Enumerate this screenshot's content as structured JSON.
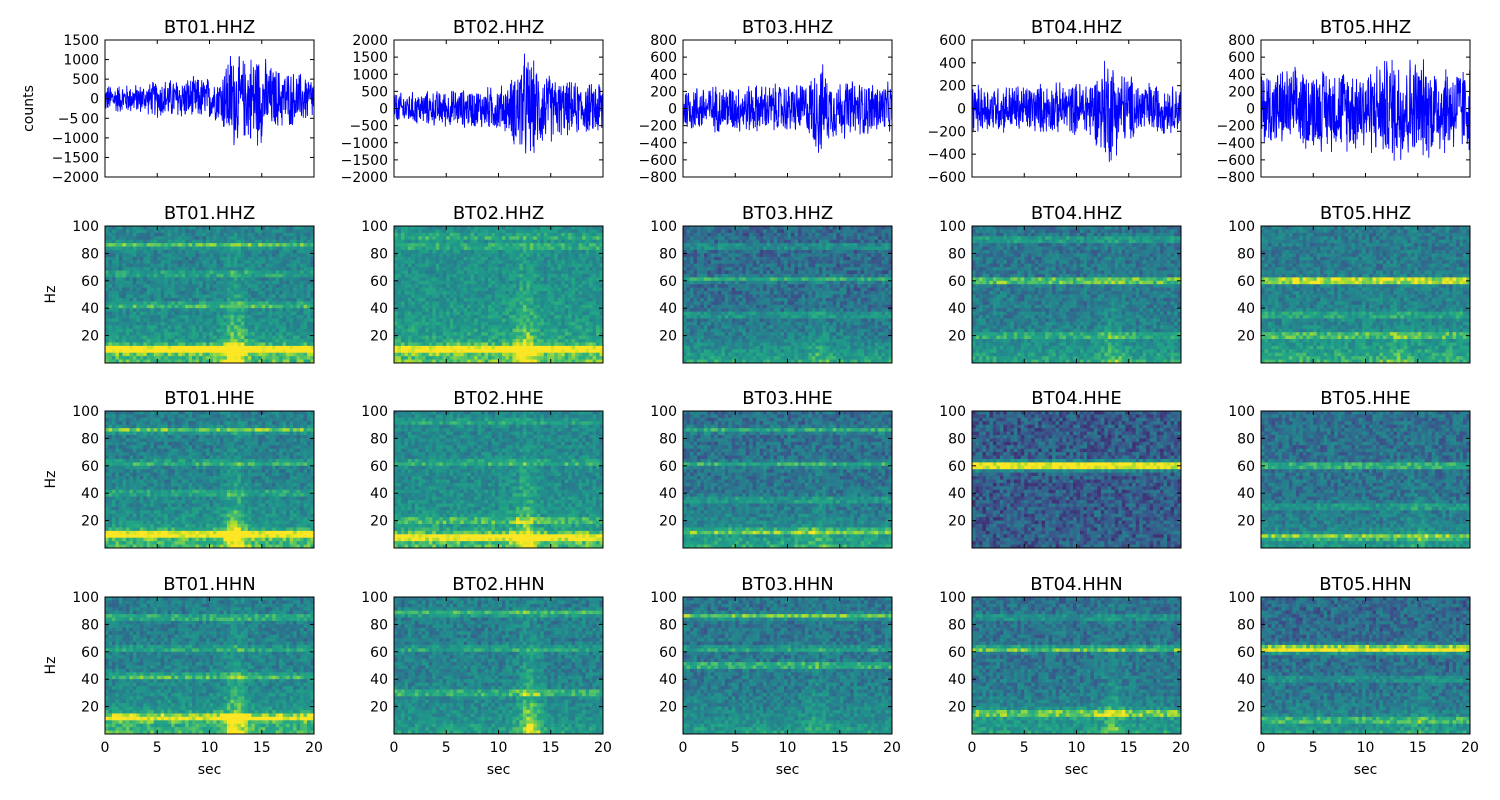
{
  "x_axis": {
    "label": "sec",
    "ticks": [
      "0",
      "5",
      "10",
      "15",
      "20"
    ],
    "xlim": [
      0,
      20
    ]
  },
  "y_labels": {
    "waveform": "counts",
    "spectrogram": "Hz"
  },
  "spectrogram_axis": {
    "ylim": [
      0,
      100
    ],
    "ticks": [
      "20",
      "40",
      "60",
      "80",
      "100"
    ]
  },
  "colors": {
    "waveform_line": "#0000ff",
    "colormap_low": "#2a788e",
    "colormap_mid": "#22a884",
    "colormap_high": "#fde725"
  },
  "chart_data": [
    {
      "type": "line",
      "title": "BT01.HHZ",
      "ylabel": "counts",
      "ylim": [
        -2000,
        1500
      ],
      "yticks": [
        "1500",
        "1000",
        "500",
        "0",
        "−5 00",
        "−1000",
        "−1500",
        "−2000"
      ],
      "xlim": [
        0,
        20
      ],
      "envelope": [
        {
          "x": 0,
          "amp": 400
        },
        {
          "x": 4,
          "amp": 420
        },
        {
          "x": 5,
          "amp": 550
        },
        {
          "x": 8,
          "amp": 600
        },
        {
          "x": 11,
          "amp": 620
        },
        {
          "x": 11.5,
          "amp": 1100
        },
        {
          "x": 12.2,
          "amp": 1500
        },
        {
          "x": 13,
          "amp": 1100
        },
        {
          "x": 14.5,
          "amp": 1400
        },
        {
          "x": 16,
          "amp": 900
        },
        {
          "x": 20,
          "amp": 650
        }
      ]
    },
    {
      "type": "line",
      "title": "BT02.HHZ",
      "ylim": [
        -2000,
        2000
      ],
      "yticks": [
        "2000",
        "1500",
        "1000",
        "500",
        "0",
        "−500",
        "−1000",
        "−1500",
        "−2000"
      ],
      "xlim": [
        0,
        20
      ],
      "envelope": [
        {
          "x": 0,
          "amp": 500
        },
        {
          "x": 8,
          "amp": 650
        },
        {
          "x": 11,
          "amp": 800
        },
        {
          "x": 12,
          "amp": 1600
        },
        {
          "x": 12.5,
          "amp": 1800
        },
        {
          "x": 14,
          "amp": 1300
        },
        {
          "x": 16,
          "amp": 900
        },
        {
          "x": 19,
          "amp": 800
        },
        {
          "x": 20,
          "amp": 1200
        }
      ]
    },
    {
      "type": "line",
      "title": "BT03.HHZ",
      "ylim": [
        -800,
        800
      ],
      "yticks": [
        "800",
        "600",
        "400",
        "200",
        "0",
        "−200",
        "−400",
        "−600",
        "−800"
      ],
      "xlim": [
        0,
        20
      ],
      "envelope": [
        {
          "x": 0,
          "amp": 300
        },
        {
          "x": 10,
          "amp": 320
        },
        {
          "x": 12,
          "amp": 350
        },
        {
          "x": 13,
          "amp": 650
        },
        {
          "x": 14,
          "amp": 400
        },
        {
          "x": 20,
          "amp": 320
        }
      ]
    },
    {
      "type": "line",
      "title": "BT04.HHZ",
      "ylim": [
        -600,
        600
      ],
      "yticks": [
        "600",
        "400",
        "200",
        "0",
        "−200",
        "−400",
        "−600"
      ],
      "xlim": [
        0,
        20
      ],
      "envelope": [
        {
          "x": 0,
          "amp": 230
        },
        {
          "x": 10,
          "amp": 250
        },
        {
          "x": 12,
          "amp": 350
        },
        {
          "x": 13,
          "amp": 570
        },
        {
          "x": 14,
          "amp": 400
        },
        {
          "x": 16,
          "amp": 270
        },
        {
          "x": 20,
          "amp": 220
        }
      ]
    },
    {
      "type": "line",
      "title": "BT05.HHZ",
      "ylim": [
        -800,
        800
      ],
      "yticks": [
        "800",
        "600",
        "400",
        "200",
        "0",
        "−200",
        "−400",
        "−600",
        "−800"
      ],
      "xlim": [
        0,
        20
      ],
      "envelope": [
        {
          "x": 0,
          "amp": 500
        },
        {
          "x": 10,
          "amp": 550
        },
        {
          "x": 12,
          "amp": 650
        },
        {
          "x": 13,
          "amp": 750
        },
        {
          "x": 15,
          "amp": 650
        },
        {
          "x": 20,
          "amp": 550
        }
      ]
    },
    {
      "type": "heatmap",
      "title": "BT01.HHZ",
      "ylabel": "Hz",
      "ylim": [
        0,
        100
      ],
      "bands": [
        {
          "f": 10,
          "w": 3,
          "a": 0.55
        },
        {
          "f": 42,
          "w": 2,
          "a": 0.3
        },
        {
          "f": 65,
          "w": 2,
          "a": 0.25
        },
        {
          "f": 86,
          "w": 2,
          "a": 0.35
        }
      ],
      "floor": 0.42,
      "lowfreq": 0.35,
      "event": {
        "t": 12.5,
        "a": 0.4
      }
    },
    {
      "type": "heatmap",
      "title": "BT02.HHZ",
      "ylabel": "Hz",
      "ylim": [
        0,
        100
      ],
      "bands": [
        {
          "f": 10,
          "w": 3,
          "a": 0.45
        },
        {
          "f": 85,
          "w": 2,
          "a": 0.2
        },
        {
          "f": 92,
          "w": 2,
          "a": 0.2
        }
      ],
      "floor": 0.5,
      "lowfreq": 0.3,
      "event": {
        "t": 12.5,
        "a": 0.35
      }
    },
    {
      "type": "heatmap",
      "title": "BT03.HHZ",
      "ylabel": "Hz",
      "ylim": [
        0,
        100
      ],
      "bands": [
        {
          "f": 35,
          "w": 2,
          "a": 0.25
        },
        {
          "f": 61,
          "w": 2,
          "a": 0.35
        },
        {
          "f": 85,
          "w": 2,
          "a": 0.25
        }
      ],
      "floor": 0.3,
      "lowfreq": 0.35,
      "event": {
        "t": 13,
        "a": 0.15
      }
    },
    {
      "type": "heatmap",
      "title": "BT04.HHZ",
      "ylabel": "Hz",
      "ylim": [
        0,
        100
      ],
      "bands": [
        {
          "f": 20,
          "w": 2,
          "a": 0.3
        },
        {
          "f": 60,
          "w": 2,
          "a": 0.6
        },
        {
          "f": 90,
          "w": 2,
          "a": 0.3
        }
      ],
      "floor": 0.35,
      "lowfreq": 0.3,
      "event": {
        "t": 13.5,
        "a": 0.2
      }
    },
    {
      "type": "heatmap",
      "title": "BT05.HHZ",
      "ylabel": "Hz",
      "ylim": [
        0,
        100
      ],
      "bands": [
        {
          "f": 20,
          "w": 2,
          "a": 0.35
        },
        {
          "f": 35,
          "w": 2,
          "a": 0.25
        },
        {
          "f": 60,
          "w": 2,
          "a": 0.75
        }
      ],
      "floor": 0.38,
      "lowfreq": 0.35,
      "event": {
        "t": 13,
        "a": 0.1
      }
    },
    {
      "type": "heatmap",
      "title": "BT01.HHE",
      "ylabel": "Hz",
      "ylim": [
        0,
        100
      ],
      "bands": [
        {
          "f": 10,
          "w": 3,
          "a": 0.5
        },
        {
          "f": 40,
          "w": 2,
          "a": 0.25
        },
        {
          "f": 62,
          "w": 2,
          "a": 0.3
        },
        {
          "f": 86,
          "w": 2,
          "a": 0.4
        }
      ],
      "floor": 0.4,
      "lowfreq": 0.35,
      "event": {
        "t": 12.5,
        "a": 0.4
      }
    },
    {
      "type": "heatmap",
      "title": "BT02.HHE",
      "ylabel": "Hz",
      "ylim": [
        0,
        100
      ],
      "bands": [
        {
          "f": 8,
          "w": 3,
          "a": 0.45
        },
        {
          "f": 20,
          "w": 2,
          "a": 0.25
        },
        {
          "f": 62,
          "w": 2,
          "a": 0.25
        },
        {
          "f": 92,
          "w": 2,
          "a": 0.2
        }
      ],
      "floor": 0.45,
      "lowfreq": 0.3,
      "event": {
        "t": 12.5,
        "a": 0.35
      }
    },
    {
      "type": "heatmap",
      "title": "BT03.HHE",
      "ylabel": "Hz",
      "ylim": [
        0,
        100
      ],
      "bands": [
        {
          "f": 12,
          "w": 2,
          "a": 0.35
        },
        {
          "f": 35,
          "w": 2,
          "a": 0.25
        },
        {
          "f": 61,
          "w": 2,
          "a": 0.35
        },
        {
          "f": 86,
          "w": 2,
          "a": 0.35
        }
      ],
      "floor": 0.32,
      "lowfreq": 0.35,
      "event": {
        "t": 13,
        "a": 0.15
      }
    },
    {
      "type": "heatmap",
      "title": "BT04.HHE",
      "ylabel": "Hz",
      "ylim": [
        0,
        100
      ],
      "bands": [
        {
          "f": 60,
          "w": 3,
          "a": 0.9
        }
      ],
      "floor": 0.25,
      "lowfreq": 0.0,
      "event": {
        "t": 13,
        "a": 0.0
      }
    },
    {
      "type": "heatmap",
      "title": "BT05.HHE",
      "ylabel": "Hz",
      "ylim": [
        0,
        100
      ],
      "bands": [
        {
          "f": 8,
          "w": 2,
          "a": 0.4
        },
        {
          "f": 30,
          "w": 2,
          "a": 0.25
        },
        {
          "f": 60,
          "w": 2,
          "a": 0.5
        }
      ],
      "floor": 0.32,
      "lowfreq": 0.25,
      "event": {
        "t": 15,
        "a": 0.15
      }
    },
    {
      "type": "heatmap",
      "title": "BT01.HHN",
      "ylabel": "Hz",
      "ylim": [
        0,
        100
      ],
      "xlabel": "sec",
      "bands": [
        {
          "f": 12,
          "w": 3,
          "a": 0.45
        },
        {
          "f": 42,
          "w": 2,
          "a": 0.35
        },
        {
          "f": 62,
          "w": 2,
          "a": 0.25
        },
        {
          "f": 85,
          "w": 2,
          "a": 0.35
        }
      ],
      "floor": 0.4,
      "lowfreq": 0.35,
      "event": {
        "t": 12.5,
        "a": 0.4
      }
    },
    {
      "type": "heatmap",
      "title": "BT02.HHN",
      "ylabel": "Hz",
      "ylim": [
        0,
        100
      ],
      "xlabel": "sec",
      "bands": [
        {
          "f": 30,
          "w": 2,
          "a": 0.35
        },
        {
          "f": 62,
          "w": 2,
          "a": 0.25
        },
        {
          "f": 88,
          "w": 2,
          "a": 0.35
        }
      ],
      "floor": 0.4,
      "lowfreq": 0.2,
      "event": {
        "t": 13,
        "a": 0.45
      }
    },
    {
      "type": "heatmap",
      "title": "BT03.HHN",
      "ylabel": "Hz",
      "ylim": [
        0,
        100
      ],
      "xlabel": "sec",
      "bands": [
        {
          "f": 50,
          "w": 2,
          "a": 0.45
        },
        {
          "f": 62,
          "w": 2,
          "a": 0.3
        },
        {
          "f": 86,
          "w": 2,
          "a": 0.45
        }
      ],
      "floor": 0.35,
      "lowfreq": 0.25,
      "event": {
        "t": 13,
        "a": 0.15
      }
    },
    {
      "type": "heatmap",
      "title": "BT04.HHN",
      "ylabel": "Hz",
      "ylim": [
        0,
        100
      ],
      "xlabel": "sec",
      "bands": [
        {
          "f": 15,
          "w": 3,
          "a": 0.4
        },
        {
          "f": 62,
          "w": 2,
          "a": 0.5
        },
        {
          "f": 85,
          "w": 2,
          "a": 0.25
        }
      ],
      "floor": 0.33,
      "lowfreq": 0.3,
      "event": {
        "t": 13.5,
        "a": 0.25
      }
    },
    {
      "type": "heatmap",
      "title": "BT05.HHN",
      "ylabel": "Hz",
      "ylim": [
        0,
        100
      ],
      "xlabel": "sec",
      "bands": [
        {
          "f": 10,
          "w": 2,
          "a": 0.35
        },
        {
          "f": 40,
          "w": 2,
          "a": 0.25
        },
        {
          "f": 62,
          "w": 3,
          "a": 0.75
        }
      ],
      "floor": 0.3,
      "lowfreq": 0.3,
      "event": {
        "t": 15,
        "a": 0.1
      }
    }
  ]
}
